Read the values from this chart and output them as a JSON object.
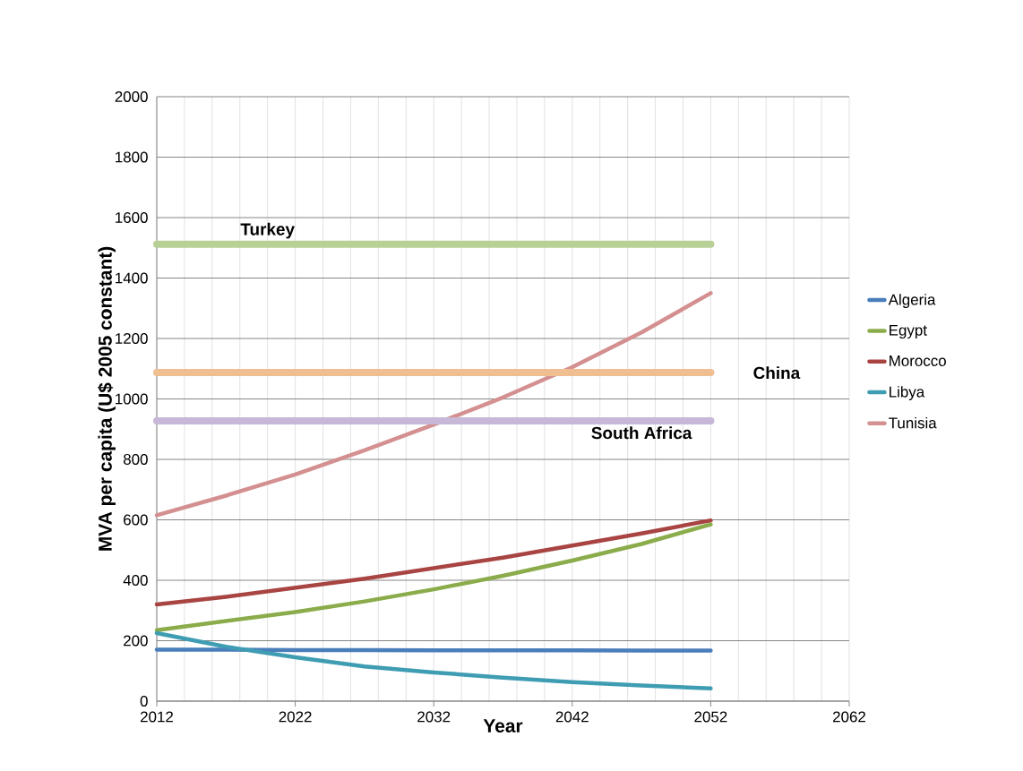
{
  "chart_data": {
    "type": "line",
    "xlabel": "Year",
    "ylabel": "MVA per capita (U$ 2005 constant)",
    "x": [
      2012,
      2017,
      2022,
      2027,
      2032,
      2037,
      2042,
      2047,
      2052
    ],
    "series": [
      {
        "name": "Algeria",
        "color": "#4a7ebb",
        "values": [
          170,
          170,
          169,
          169,
          168,
          168,
          168,
          167,
          167
        ]
      },
      {
        "name": "Egypt",
        "color": "#8aac4a",
        "values": [
          235,
          265,
          295,
          330,
          370,
          415,
          465,
          520,
          585
        ]
      },
      {
        "name": "Morocco",
        "color": "#a84442",
        "values": [
          320,
          345,
          375,
          405,
          440,
          475,
          515,
          555,
          598
        ]
      },
      {
        "name": "Libya",
        "color": "#3f9db3",
        "values": [
          225,
          180,
          145,
          115,
          95,
          78,
          63,
          52,
          42
        ]
      },
      {
        "name": "Tunisia",
        "color": "#d49090",
        "values": [
          615,
          680,
          750,
          830,
          915,
          1005,
          1105,
          1220,
          1350
        ]
      },
      {
        "color": "#b8d096",
        "values": [
          1512,
          1512,
          1512,
          1512,
          1512,
          1512,
          1512,
          1512,
          1512
        ]
      },
      {
        "color": "#efbf91",
        "values": [
          1087,
          1087,
          1087,
          1087,
          1087,
          1087,
          1087,
          1087,
          1087
        ]
      },
      {
        "color": "#c6b8d6",
        "values": [
          927,
          927,
          927,
          927,
          927,
          927,
          927,
          927,
          927
        ]
      }
    ],
    "annotations": [
      {
        "text": "Turkey",
        "x": 2020,
        "y": 1512
      },
      {
        "text": "China",
        "x": 2052,
        "y": 1087
      },
      {
        "text": "South Africa",
        "x": 2047,
        "y": 927
      }
    ],
    "xlim": [
      2012,
      2062
    ],
    "xticks": [
      2012,
      2022,
      2032,
      2042,
      2052,
      2062
    ],
    "ylim": [
      0,
      2000
    ],
    "yticks": [
      0,
      200,
      400,
      600,
      800,
      1000,
      1200,
      1400,
      1600,
      1800,
      2000
    ],
    "grid": true,
    "legend": "right",
    "marker": "none",
    "line_style": "solid"
  }
}
